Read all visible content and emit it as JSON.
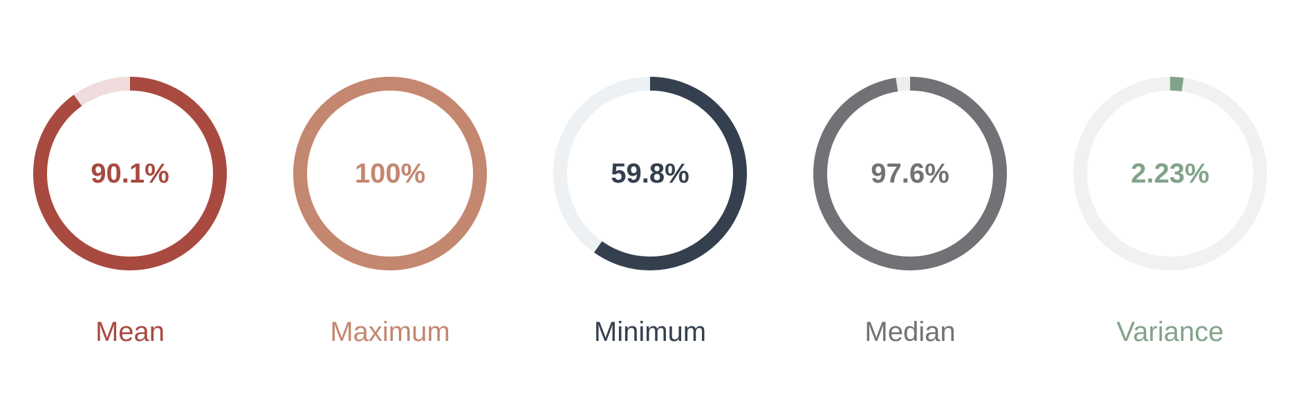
{
  "chart_data": [
    {
      "type": "gauge",
      "label": "Mean",
      "value": 90.1,
      "display": "90.1%",
      "color": "#a84a40",
      "track_color": "#f0dcdc"
    },
    {
      "type": "gauge",
      "label": "Maximum",
      "value": 100,
      "display": "100%",
      "color": "#c4876f",
      "track_color": "#f3e5df"
    },
    {
      "type": "gauge",
      "label": "Minimum",
      "value": 59.8,
      "display": "59.8%",
      "color": "#35404f",
      "track_color": "#eef1f4"
    },
    {
      "type": "gauge",
      "label": "Median",
      "value": 97.6,
      "display": "97.6%",
      "color": "#717275",
      "track_color": "#eeeeef"
    },
    {
      "type": "gauge",
      "label": "Variance",
      "value": 2.23,
      "display": "2.23%",
      "color": "#82a38a",
      "track_color": "#eff2ef"
    }
  ]
}
